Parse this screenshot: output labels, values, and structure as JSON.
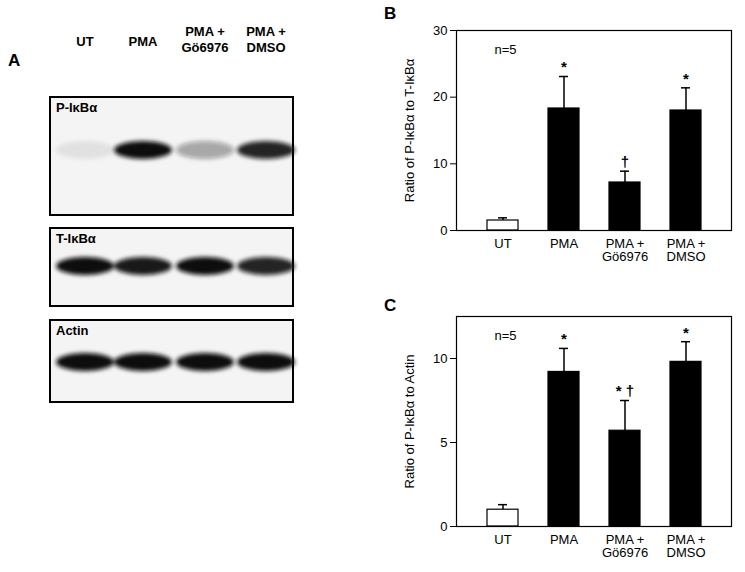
{
  "panel_a": {
    "title": "A",
    "lanes": [
      "UT",
      "PMA",
      "PMA +\nGö6976",
      "PMA +\nDMSO"
    ],
    "blots": [
      {
        "label": "P-IκBα",
        "band_intensity": [
          0.08,
          1,
          0.35,
          0.9
        ]
      },
      {
        "label": "T-IκBα",
        "band_intensity": [
          1,
          0.95,
          1,
          0.9
        ]
      },
      {
        "label": "Actin",
        "band_intensity": [
          1,
          1,
          1,
          1
        ]
      }
    ]
  },
  "chart_data": [
    {
      "type": "bar",
      "title": "B",
      "annotation": "n=5",
      "categories": [
        "UT",
        "PMA",
        "PMA +\nGö6976",
        "PMA +\nDMSO"
      ],
      "values": [
        1.5,
        18.3,
        7.2,
        18.0
      ],
      "errors": [
        0.4,
        4.8,
        1.7,
        3.4
      ],
      "significance": [
        null,
        "*",
        "†",
        "*"
      ],
      "colors": [
        "#ffffff",
        "#000000",
        "#000000",
        "#000000"
      ],
      "y_label": "Ratio of P-IκBα to T-IκBα",
      "ylim": [
        0,
        30
      ],
      "yticks": [
        0,
        10,
        20,
        30
      ]
    },
    {
      "type": "bar",
      "title": "C",
      "annotation": "n=5",
      "categories": [
        "UT",
        "PMA",
        "PMA +\nGö6976",
        "PMA +\nDMSO"
      ],
      "values": [
        1.0,
        9.2,
        5.7,
        9.8
      ],
      "errors": [
        0.3,
        1.4,
        1.8,
        1.2
      ],
      "significance": [
        null,
        "*",
        "* †",
        "*"
      ],
      "colors": [
        "#ffffff",
        "#000000",
        "#000000",
        "#000000"
      ],
      "y_label": "Ratio of P-IκBα to Actin",
      "ylim": [
        0,
        12.5
      ],
      "yticks": [
        0,
        5,
        10
      ]
    }
  ]
}
